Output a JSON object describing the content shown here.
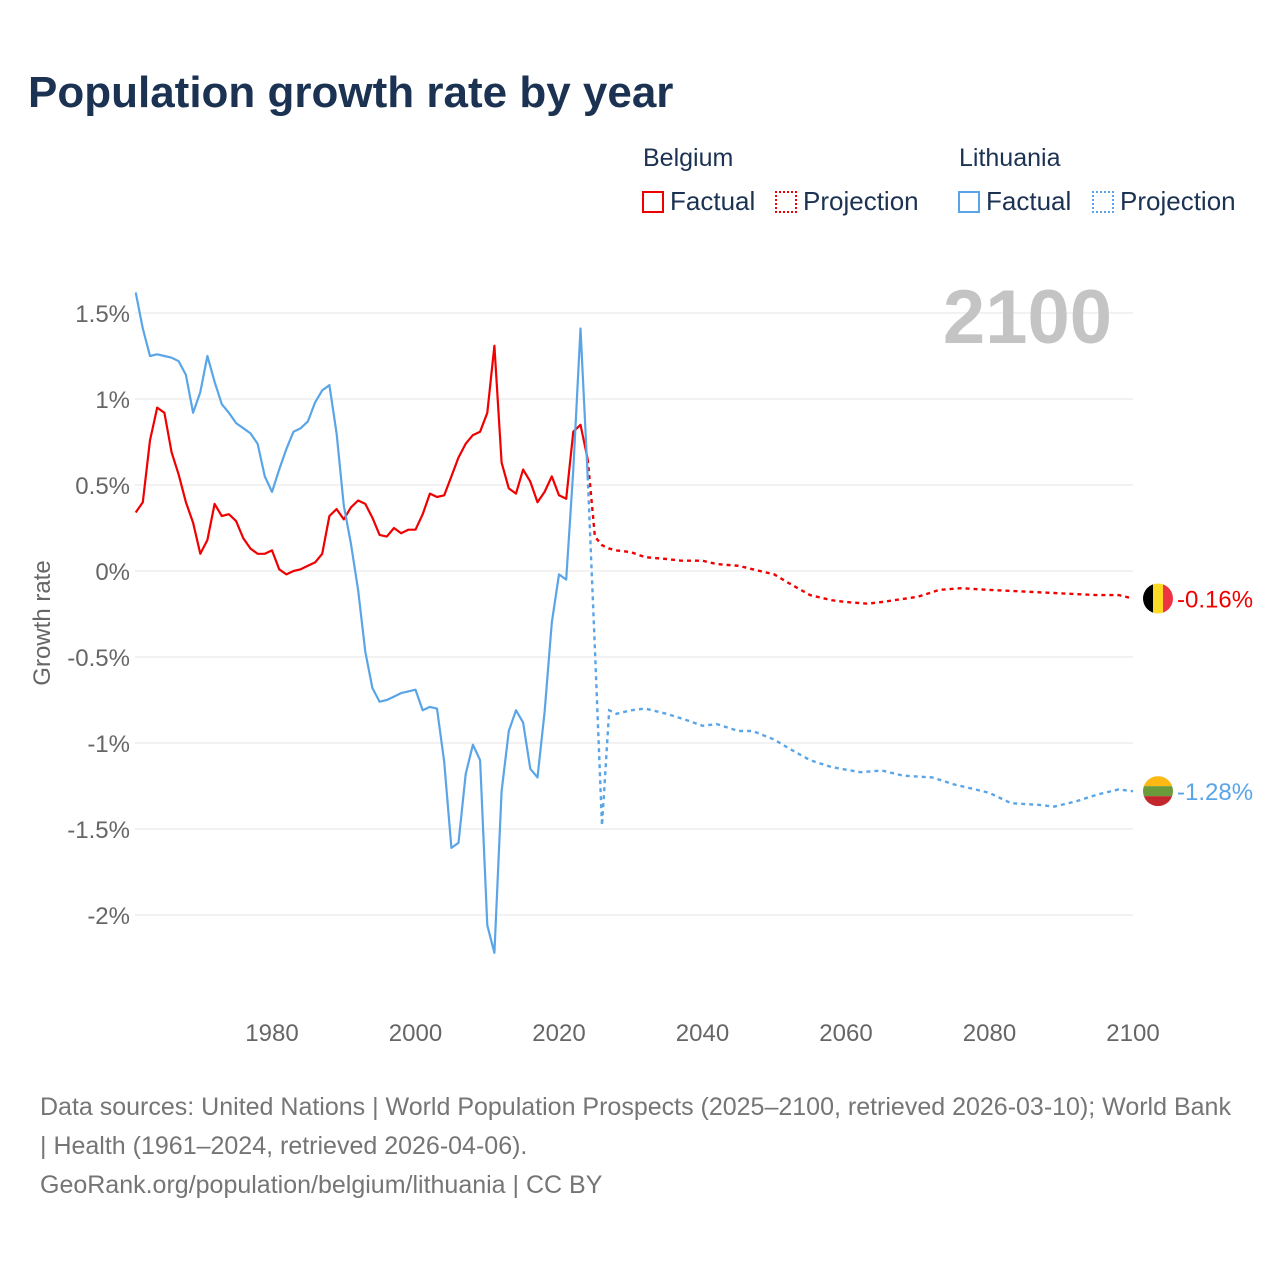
{
  "title": "Population growth rate by year",
  "legend": {
    "groups": [
      {
        "name": "Belgium",
        "factual": "Factual",
        "projection": "Projection",
        "color": "#f00000"
      },
      {
        "name": "Lithuania",
        "factual": "Factual",
        "projection": "Projection",
        "color": "#5aa5e8"
      }
    ]
  },
  "year_label": "2100",
  "footer": {
    "sources": "Data sources: United Nations | World Population Prospects (2025–2100, retrieved 2026-03-10); World Bank | Health (1961–2024, retrieved 2026-04-06).",
    "credit": "GeoRank.org/population/belgium/lithuania | CC BY"
  },
  "chart_data": {
    "type": "line",
    "title": "Population growth rate by year",
    "xlabel": "",
    "ylabel": "Growth rate",
    "xlim": [
      1961,
      2100
    ],
    "ylim": [
      -2.4,
      1.7
    ],
    "x_ticks": [
      1980,
      2000,
      2020,
      2040,
      2060,
      2080,
      2100
    ],
    "x_tick_labels": [
      "1980",
      "2000",
      "2020",
      "2040",
      "2060",
      "2080",
      "2100"
    ],
    "y_ticks": [
      1.5,
      1,
      0.5,
      0,
      -0.5,
      -1,
      -1.5,
      -2
    ],
    "y_tick_labels": [
      "1.5%",
      "1%",
      "0.5%",
      "0%",
      "-0.5%",
      "-1%",
      "-1.5%",
      "-2%"
    ],
    "grid": true,
    "legend_position": "top-right",
    "series": [
      {
        "name": "Belgium",
        "color": "#f00000",
        "end_label": "-0.16%",
        "factual": [
          [
            1961,
            0.34
          ],
          [
            1962,
            0.4
          ],
          [
            1963,
            0.76
          ],
          [
            1964,
            0.95
          ],
          [
            1965,
            0.92
          ],
          [
            1966,
            0.69
          ],
          [
            1967,
            0.56
          ],
          [
            1968,
            0.4
          ],
          [
            1969,
            0.28
          ],
          [
            1970,
            0.1
          ],
          [
            1971,
            0.18
          ],
          [
            1972,
            0.39
          ],
          [
            1973,
            0.32
          ],
          [
            1974,
            0.33
          ],
          [
            1975,
            0.29
          ],
          [
            1976,
            0.19
          ],
          [
            1977,
            0.13
          ],
          [
            1978,
            0.1
          ],
          [
            1979,
            0.1
          ],
          [
            1980,
            0.12
          ],
          [
            1981,
            0.01
          ],
          [
            1982,
            -0.02
          ],
          [
            1983,
            0.0
          ],
          [
            1984,
            0.01
          ],
          [
            1985,
            0.03
          ],
          [
            1986,
            0.05
          ],
          [
            1987,
            0.1
          ],
          [
            1988,
            0.32
          ],
          [
            1989,
            0.36
          ],
          [
            1990,
            0.3
          ],
          [
            1991,
            0.37
          ],
          [
            1992,
            0.41
          ],
          [
            1993,
            0.39
          ],
          [
            1994,
            0.31
          ],
          [
            1995,
            0.21
          ],
          [
            1996,
            0.2
          ],
          [
            1997,
            0.25
          ],
          [
            1998,
            0.22
          ],
          [
            1999,
            0.24
          ],
          [
            2000,
            0.24
          ],
          [
            2001,
            0.33
          ],
          [
            2002,
            0.45
          ],
          [
            2003,
            0.43
          ],
          [
            2004,
            0.44
          ],
          [
            2005,
            0.55
          ],
          [
            2006,
            0.66
          ],
          [
            2007,
            0.74
          ],
          [
            2008,
            0.79
          ],
          [
            2009,
            0.81
          ],
          [
            2010,
            0.92
          ],
          [
            2011,
            1.31
          ],
          [
            2012,
            0.63
          ],
          [
            2013,
            0.48
          ],
          [
            2014,
            0.45
          ],
          [
            2015,
            0.59
          ],
          [
            2016,
            0.52
          ],
          [
            2017,
            0.4
          ],
          [
            2018,
            0.46
          ],
          [
            2019,
            0.55
          ],
          [
            2020,
            0.44
          ],
          [
            2021,
            0.42
          ],
          [
            2022,
            0.81
          ],
          [
            2023,
            0.85
          ],
          [
            2024,
            0.65
          ]
        ],
        "projection": [
          [
            2024,
            0.65
          ],
          [
            2025,
            0.2
          ],
          [
            2026,
            0.15
          ],
          [
            2027,
            0.13
          ],
          [
            2028,
            0.12
          ],
          [
            2030,
            0.11
          ],
          [
            2032,
            0.08
          ],
          [
            2035,
            0.07
          ],
          [
            2037,
            0.06
          ],
          [
            2040,
            0.06
          ],
          [
            2042,
            0.04
          ],
          [
            2045,
            0.03
          ],
          [
            2048,
            0.0
          ],
          [
            2050,
            -0.02
          ],
          [
            2052,
            -0.07
          ],
          [
            2055,
            -0.14
          ],
          [
            2058,
            -0.17
          ],
          [
            2060,
            -0.18
          ],
          [
            2063,
            -0.19
          ],
          [
            2065,
            -0.18
          ],
          [
            2070,
            -0.15
          ],
          [
            2073,
            -0.11
          ],
          [
            2076,
            -0.1
          ],
          [
            2080,
            -0.11
          ],
          [
            2085,
            -0.12
          ],
          [
            2090,
            -0.13
          ],
          [
            2095,
            -0.14
          ],
          [
            2098,
            -0.14
          ],
          [
            2100,
            -0.16
          ]
        ]
      },
      {
        "name": "Lithuania",
        "color": "#5aa5e8",
        "end_label": "-1.28%",
        "factual": [
          [
            1961,
            1.62
          ],
          [
            1962,
            1.41
          ],
          [
            1963,
            1.25
          ],
          [
            1964,
            1.26
          ],
          [
            1965,
            1.25
          ],
          [
            1966,
            1.24
          ],
          [
            1967,
            1.22
          ],
          [
            1968,
            1.14
          ],
          [
            1969,
            0.92
          ],
          [
            1970,
            1.04
          ],
          [
            1971,
            1.25
          ],
          [
            1972,
            1.1
          ],
          [
            1973,
            0.97
          ],
          [
            1974,
            0.92
          ],
          [
            1975,
            0.86
          ],
          [
            1976,
            0.83
          ],
          [
            1977,
            0.8
          ],
          [
            1978,
            0.74
          ],
          [
            1979,
            0.55
          ],
          [
            1980,
            0.46
          ],
          [
            1981,
            0.59
          ],
          [
            1982,
            0.71
          ],
          [
            1983,
            0.81
          ],
          [
            1984,
            0.83
          ],
          [
            1985,
            0.87
          ],
          [
            1986,
            0.98
          ],
          [
            1987,
            1.05
          ],
          [
            1988,
            1.08
          ],
          [
            1989,
            0.8
          ],
          [
            1990,
            0.38
          ],
          [
            1991,
            0.16
          ],
          [
            1992,
            -0.11
          ],
          [
            1993,
            -0.47
          ],
          [
            1994,
            -0.68
          ],
          [
            1995,
            -0.76
          ],
          [
            1996,
            -0.75
          ],
          [
            1997,
            -0.73
          ],
          [
            1998,
            -0.71
          ],
          [
            1999,
            -0.7
          ],
          [
            2000,
            -0.69
          ],
          [
            2001,
            -0.81
          ],
          [
            2002,
            -0.79
          ],
          [
            2003,
            -0.8
          ],
          [
            2004,
            -1.11
          ],
          [
            2005,
            -1.61
          ],
          [
            2006,
            -1.58
          ],
          [
            2007,
            -1.18
          ],
          [
            2008,
            -1.01
          ],
          [
            2009,
            -1.1
          ],
          [
            2010,
            -2.06
          ],
          [
            2011,
            -2.22
          ],
          [
            2012,
            -1.28
          ],
          [
            2013,
            -0.93
          ],
          [
            2014,
            -0.81
          ],
          [
            2015,
            -0.88
          ],
          [
            2016,
            -1.15
          ],
          [
            2017,
            -1.2
          ],
          [
            2018,
            -0.82
          ],
          [
            2019,
            -0.3
          ],
          [
            2020,
            -0.02
          ],
          [
            2021,
            -0.05
          ],
          [
            2022,
            0.59
          ],
          [
            2023,
            1.41
          ],
          [
            2024,
            0.55
          ]
        ],
        "projection": [
          [
            2024,
            0.55
          ],
          [
            2025,
            -0.45
          ],
          [
            2026,
            -1.48
          ],
          [
            2027,
            -0.81
          ],
          [
            2028,
            -0.83
          ],
          [
            2030,
            -0.81
          ],
          [
            2032,
            -0.8
          ],
          [
            2035,
            -0.83
          ],
          [
            2038,
            -0.87
          ],
          [
            2040,
            -0.9
          ],
          [
            2042,
            -0.89
          ],
          [
            2045,
            -0.93
          ],
          [
            2047,
            -0.93
          ],
          [
            2050,
            -0.98
          ],
          [
            2052,
            -1.03
          ],
          [
            2055,
            -1.1
          ],
          [
            2058,
            -1.14
          ],
          [
            2062,
            -1.17
          ],
          [
            2065,
            -1.16
          ],
          [
            2068,
            -1.19
          ],
          [
            2072,
            -1.2
          ],
          [
            2075,
            -1.24
          ],
          [
            2078,
            -1.27
          ],
          [
            2080,
            -1.29
          ],
          [
            2083,
            -1.35
          ],
          [
            2087,
            -1.36
          ],
          [
            2089,
            -1.37
          ],
          [
            2092,
            -1.34
          ],
          [
            2095,
            -1.3
          ],
          [
            2098,
            -1.27
          ],
          [
            2100,
            -1.28
          ]
        ]
      }
    ]
  }
}
